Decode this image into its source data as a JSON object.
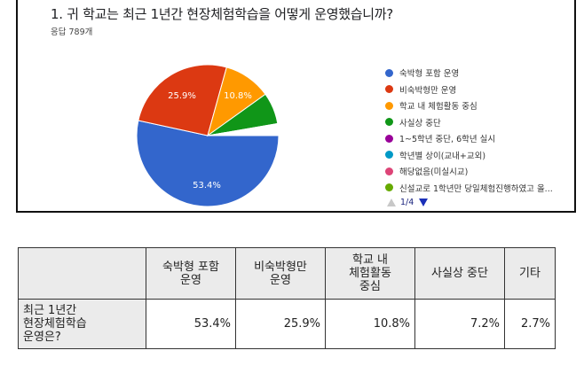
{
  "form": {
    "question": "1. 귀 학교는 최근 1년간 현장체험학습을 어떻게 운영했습니까?",
    "responses": "응답 789개",
    "pager": "1/4"
  },
  "legend": [
    {
      "label": "숙박형 포함 운영",
      "color": "#3366cc"
    },
    {
      "label": "비숙박형만 운영",
      "color": "#dc3912"
    },
    {
      "label": "학교 내 체험활동 중심",
      "color": "#ff9900"
    },
    {
      "label": "사실상 중단",
      "color": "#109618"
    },
    {
      "label": "1~5학년 중단, 6학년 실시",
      "color": "#990099"
    },
    {
      "label": "학년별 상이(교내+교외)",
      "color": "#0099c6"
    },
    {
      "label": "해당없음(미실시교)",
      "color": "#dd4477"
    },
    {
      "label": "신설교로 1학년만 당일체험진행하였고 올...",
      "color": "#66aa00"
    }
  ],
  "pie_labels": {
    "blue": "53.4%",
    "red": "25.9%",
    "orange": "10.8%"
  },
  "table": {
    "corner": "",
    "headers": [
      "숙박형 포함\n운영",
      "비숙박형만\n운영",
      "학교 내\n체험활동\n중심",
      "사실상 중단",
      "기타"
    ],
    "row_label": "최근 1년간\n현장체험학습\n운영은?",
    "values": [
      "53.4%",
      "25.9%",
      "10.8%",
      "7.2%",
      "2.7%"
    ]
  },
  "chart_data": {
    "type": "pie",
    "title": "1. 귀 학교는 최근 1년간 현장체험학습을 어떻게 운영했습니까?",
    "subtitle": "응답 789개",
    "categories": [
      "숙박형 포함 운영",
      "비숙박형만 운영",
      "학교 내 체험활동 중심",
      "사실상 중단",
      "기타"
    ],
    "values": [
      53.4,
      25.9,
      10.8,
      7.2,
      2.7
    ],
    "colors": [
      "#3366cc",
      "#dc3912",
      "#ff9900",
      "#109618",
      "#ffffff"
    ],
    "legend_position": "right",
    "legend_entries": [
      "숙박형 포함 운영",
      "비숙박형만 운영",
      "학교 내 체험활동 중심",
      "사실상 중단",
      "1~5학년 중단, 6학년 실시",
      "학년별 상이(교내+교외)",
      "해당없음(미실시교)",
      "신설교로 1학년만 당일체험진행하였고 올..."
    ],
    "legend_page": "1/4"
  }
}
